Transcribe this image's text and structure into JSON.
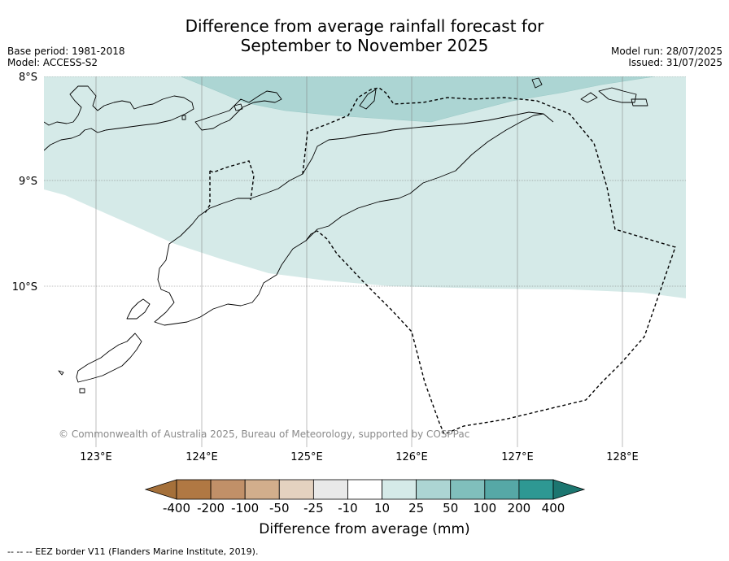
{
  "title_line1": "Difference from average rainfall forecast for",
  "title_line2": "September to November 2025",
  "base_period": "Base period: 1981-2018",
  "model": "Model: ACCESS-S2",
  "model_run": "Model run: 28/07/2025",
  "issued": "Issued: 31/07/2025",
  "lat_labels": [
    "8°S",
    "9°S",
    "10°S"
  ],
  "lon_labels": [
    "123°E",
    "124°E",
    "125°E",
    "126°E",
    "127°E",
    "128°E"
  ],
  "copyright": "© Commonwealth of Australia 2025, Bureau of Meteorology, supported by COSPPac",
  "colorbar": {
    "title": "Difference from average (mm)",
    "tick_labels": [
      "-400",
      "-200",
      "-100",
      "-50",
      "-25",
      "-10",
      "10",
      "25",
      "50",
      "100",
      "200",
      "400"
    ],
    "colors": [
      "#a5703a",
      "#b07843",
      "#c19068",
      "#d2ae8c",
      "#e4d2c0",
      "#e9e9e9",
      "#ffffff",
      "#d5eae8",
      "#acd5d3",
      "#80bfbc",
      "#56a8a6",
      "#2e9893",
      "#1c7670"
    ]
  },
  "footnote": "--  --  -- EEZ border V11 (Flanders Marine Institute, 2019)."
}
